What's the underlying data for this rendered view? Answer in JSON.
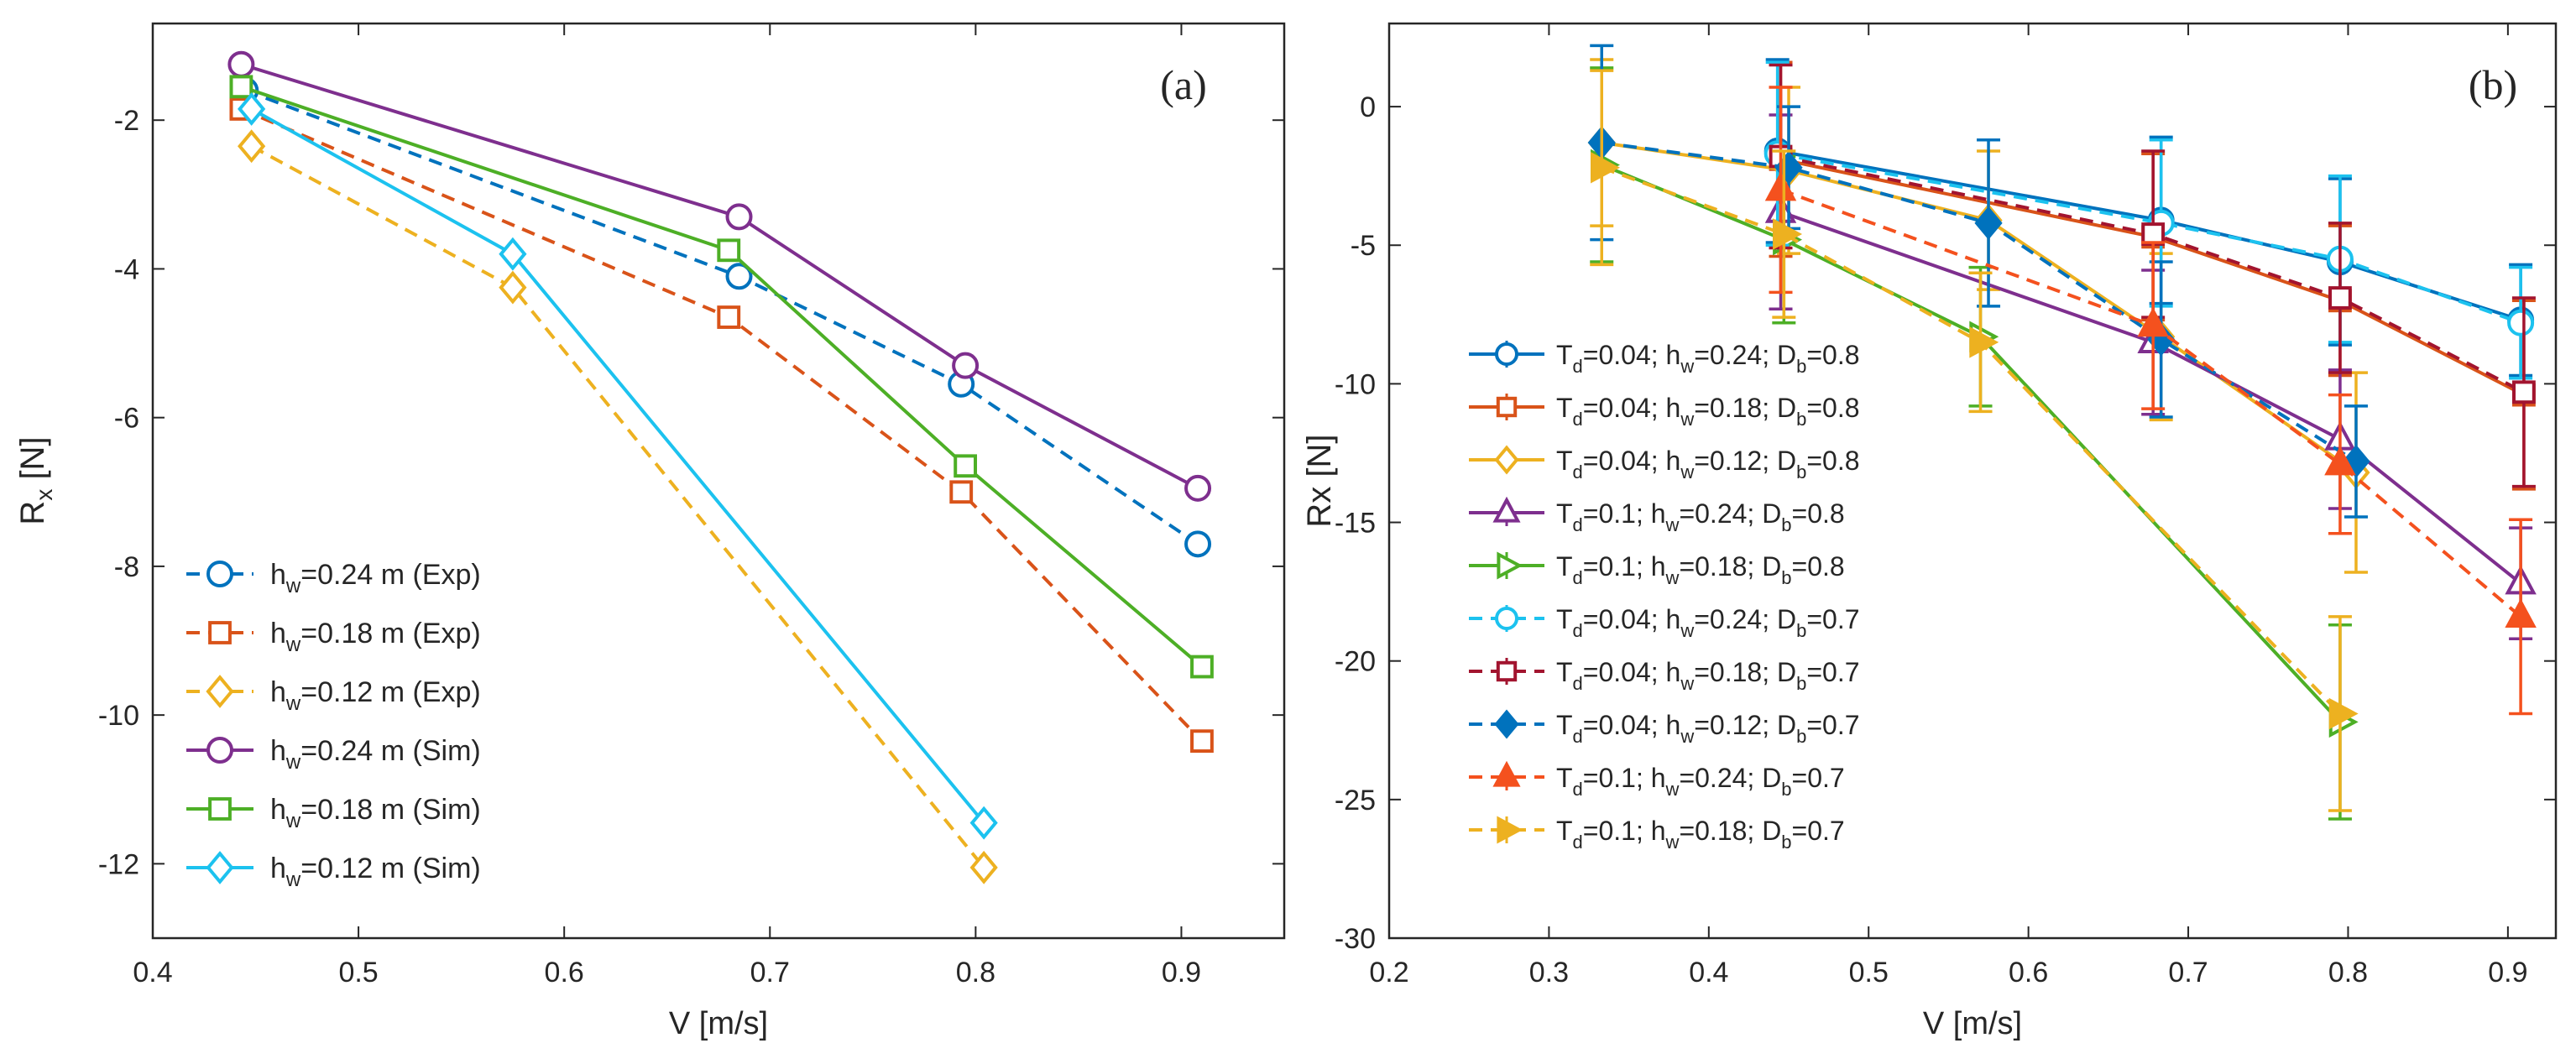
{
  "chart_data": [
    {
      "id": "a",
      "type": "line",
      "panel_label": "(a)",
      "xlabel": "V [m/s]",
      "ylabel": "R_x [N]",
      "xlim": [
        0.4,
        0.95
      ],
      "ylim": [
        -13,
        -0.7
      ],
      "xticks": [
        0.4,
        0.5,
        0.6,
        0.7,
        0.8,
        0.9
      ],
      "xtick_labels": [
        "0.4",
        "0.5",
        "0.6",
        "0.7",
        "0.8",
        "0.9"
      ],
      "yticks": [
        -12,
        -10,
        -8,
        -6,
        -4,
        -2
      ],
      "ytick_labels": [
        "-12",
        "-10",
        "-8",
        "-6",
        "-4",
        "-2"
      ],
      "grid": false,
      "legend_position": "bottom-left",
      "series": [
        {
          "name": "h_w=0.24 m (Exp)",
          "legend_text": "=0.24 m (Exp)",
          "color": "#0072BD",
          "dash": true,
          "marker": "circle",
          "x": [
            0.445,
            0.685,
            0.793,
            0.908
          ],
          "y": [
            -1.6,
            -4.1,
            -5.55,
            -7.7
          ]
        },
        {
          "name": "h_w=0.18 m (Exp)",
          "legend_text": "=0.18 m (Exp)",
          "color": "#D95319",
          "dash": true,
          "marker": "square",
          "x": [
            0.443,
            0.68,
            0.793,
            0.91
          ],
          "y": [
            -1.85,
            -4.65,
            -7.0,
            -10.35
          ]
        },
        {
          "name": "h_w=0.12 m (Exp)",
          "legend_text": "=0.12 m (Exp)",
          "color": "#EDB120",
          "dash": true,
          "marker": "diamond",
          "x": [
            0.448,
            0.575,
            0.804
          ],
          "y": [
            -2.35,
            -4.25,
            -12.05
          ]
        },
        {
          "name": "h_w=0.24 m (Sim)",
          "legend_text": "=0.24 m (Sim)",
          "color": "#7E2F8E",
          "dash": false,
          "marker": "circle",
          "x": [
            0.443,
            0.685,
            0.795,
            0.908
          ],
          "y": [
            -1.25,
            -3.3,
            -5.3,
            -6.95
          ]
        },
        {
          "name": "h_w=0.18 m (Sim)",
          "legend_text": "=0.18 m (Sim)",
          "color": "#4DAF26",
          "dash": false,
          "marker": "square",
          "x": [
            0.443,
            0.68,
            0.795,
            0.91
          ],
          "y": [
            -1.55,
            -3.75,
            -6.65,
            -9.35
          ]
        },
        {
          "name": "h_w=0.12 m (Sim)",
          "legend_text": "=0.12 m (Sim)",
          "color": "#1CC2EF",
          "dash": false,
          "marker": "diamond",
          "x": [
            0.448,
            0.575,
            0.804
          ],
          "y": [
            -1.85,
            -3.8,
            -11.45
          ]
        }
      ]
    },
    {
      "id": "b",
      "type": "line",
      "panel_label": "(b)",
      "xlabel": "V [m/s]",
      "ylabel": "Rx [N]",
      "xlim": [
        0.2,
        0.93
      ],
      "ylim": [
        -30,
        3
      ],
      "xticks": [
        0.2,
        0.3,
        0.4,
        0.5,
        0.6,
        0.7,
        0.8,
        0.9
      ],
      "xtick_labels": [
        "0.2",
        "0.3",
        "0.4",
        "0.5",
        "0.6",
        "0.7",
        "0.8",
        "0.9"
      ],
      "yticks": [
        -30,
        -25,
        -20,
        -15,
        -10,
        -5,
        0
      ],
      "ytick_labels": [
        "-30",
        "-25",
        "-20",
        "-15",
        "-10",
        "-5",
        "0"
      ],
      "grid": false,
      "legend_position": "left",
      "series": [
        {
          "name": "T_d=0.04; h_w=0.24; D_b=0.8",
          "legend_T": "=0.04; h",
          "legend_h": "=0.24; D",
          "legend_D": "=0.8",
          "color": "#0072BD",
          "dash": false,
          "marker": "circle",
          "x": [
            0.443,
            0.683,
            0.795,
            0.908
          ],
          "y": [
            -1.6,
            -4.1,
            -5.6,
            -7.7
          ],
          "err": [
            3.3,
            3.0,
            3.0,
            2.0
          ]
        },
        {
          "name": "T_d=0.04; h_w=0.18; D_b=0.8",
          "legend_T": "=0.04; h",
          "legend_h": "=0.18; D",
          "legend_D": "=0.8",
          "color": "#D95319",
          "dash": false,
          "marker": "square",
          "x": [
            0.445,
            0.678,
            0.795,
            0.91
          ],
          "y": [
            -1.9,
            -4.7,
            -7.0,
            -10.4
          ],
          "err": [
            3.5,
            3.0,
            2.7,
            3.4
          ]
        },
        {
          "name": "T_d=0.04; h_w=0.12; D_b=0.8",
          "legend_T": "=0.04; h",
          "legend_h": "=0.12; D",
          "legend_D": "=0.8",
          "color": "#EDB120",
          "dash": false,
          "marker": "diamond",
          "x": [
            0.333,
            0.45,
            0.575,
            0.683,
            0.805
          ],
          "y": [
            -1.3,
            -2.3,
            -4.1,
            -8.3,
            -13.2
          ],
          "err": [
            3.0,
            3.0,
            2.5,
            3.0,
            3.6
          ]
        },
        {
          "name": "T_d=0.1; h_w=0.24; D_b=0.8",
          "legend_T": "=0.1; h",
          "legend_h": "=0.24; D",
          "legend_D": "=0.8",
          "color": "#7E2F8E",
          "dash": false,
          "marker": "triangle-up",
          "x": [
            0.445,
            0.678,
            0.795,
            0.908
          ],
          "y": [
            -3.8,
            -8.5,
            -12.0,
            -17.2
          ],
          "err": [
            3.5,
            2.6,
            2.5,
            2.0
          ]
        },
        {
          "name": "T_d=0.1; h_w=0.18; D_b=0.8",
          "legend_T": "=0.1; h",
          "legend_h": "=0.18; D",
          "legend_D": "=0.8",
          "color": "#4DAF26",
          "dash": false,
          "marker": "triangle-right",
          "x": [
            0.333,
            0.447,
            0.57,
            0.795
          ],
          "y": [
            -2.1,
            -4.8,
            -8.3,
            -22.2
          ],
          "err": [
            3.5,
            3.0,
            2.5,
            3.5
          ]
        },
        {
          "name": "T_d=0.04; h_w=0.24; D_b=0.7",
          "legend_T": "=0.04; h",
          "legend_h": "=0.24; D",
          "legend_D": "=0.7",
          "color": "#1CC2EF",
          "dash": true,
          "marker": "circle",
          "x": [
            0.443,
            0.683,
            0.795,
            0.908
          ],
          "y": [
            -1.7,
            -4.2,
            -5.5,
            -7.8
          ],
          "err": [
            3.3,
            3.0,
            3.0,
            2.0
          ]
        },
        {
          "name": "T_d=0.04; h_w=0.18; D_b=0.7",
          "legend_T": "=0.04; h",
          "legend_h": "=0.18; D",
          "legend_D": "=0.7",
          "color": "#A2142F",
          "dash": true,
          "marker": "square",
          "x": [
            0.445,
            0.678,
            0.795,
            0.91
          ],
          "y": [
            -1.8,
            -4.6,
            -6.9,
            -10.3
          ],
          "err": [
            3.3,
            3.0,
            2.7,
            3.4
          ]
        },
        {
          "name": "T_d=0.04; h_w=0.12; D_b=0.7",
          "legend_T": "=0.04; h",
          "legend_h": "=0.12; D",
          "legend_D": "=0.7",
          "color": "#0072BD",
          "dash": true,
          "marker": "diamond-filled",
          "x": [
            0.333,
            0.45,
            0.575,
            0.683,
            0.805
          ],
          "y": [
            -1.3,
            -2.2,
            -4.2,
            -8.4,
            -12.8
          ],
          "err": [
            3.5,
            2.2,
            3.0,
            2.8,
            2.0
          ]
        },
        {
          "name": "T_d=0.1; h_w=0.24; D_b=0.7",
          "legend_T": "=0.1; h",
          "legend_h": "=0.24; D",
          "legend_D": "=0.7",
          "color": "#F4511E",
          "dash": true,
          "marker": "triangle-up-filled",
          "x": [
            0.445,
            0.678,
            0.795,
            0.908
          ],
          "y": [
            -3.0,
            -7.9,
            -12.9,
            -18.4
          ],
          "err": [
            3.7,
            3.0,
            2.5,
            3.5
          ]
        },
        {
          "name": "T_d=0.1; h_w=0.18; D_b=0.7",
          "legend_T": "=0.1; h",
          "legend_h": "=0.18; D",
          "legend_D": "=0.7",
          "color": "#EDB120",
          "dash": true,
          "marker": "triangle-right-filled",
          "x": [
            0.333,
            0.447,
            0.57,
            0.795
          ],
          "y": [
            -2.2,
            -4.6,
            -8.5,
            -21.9
          ],
          "err": [
            3.5,
            3.0,
            2.5,
            3.5
          ]
        }
      ]
    }
  ]
}
